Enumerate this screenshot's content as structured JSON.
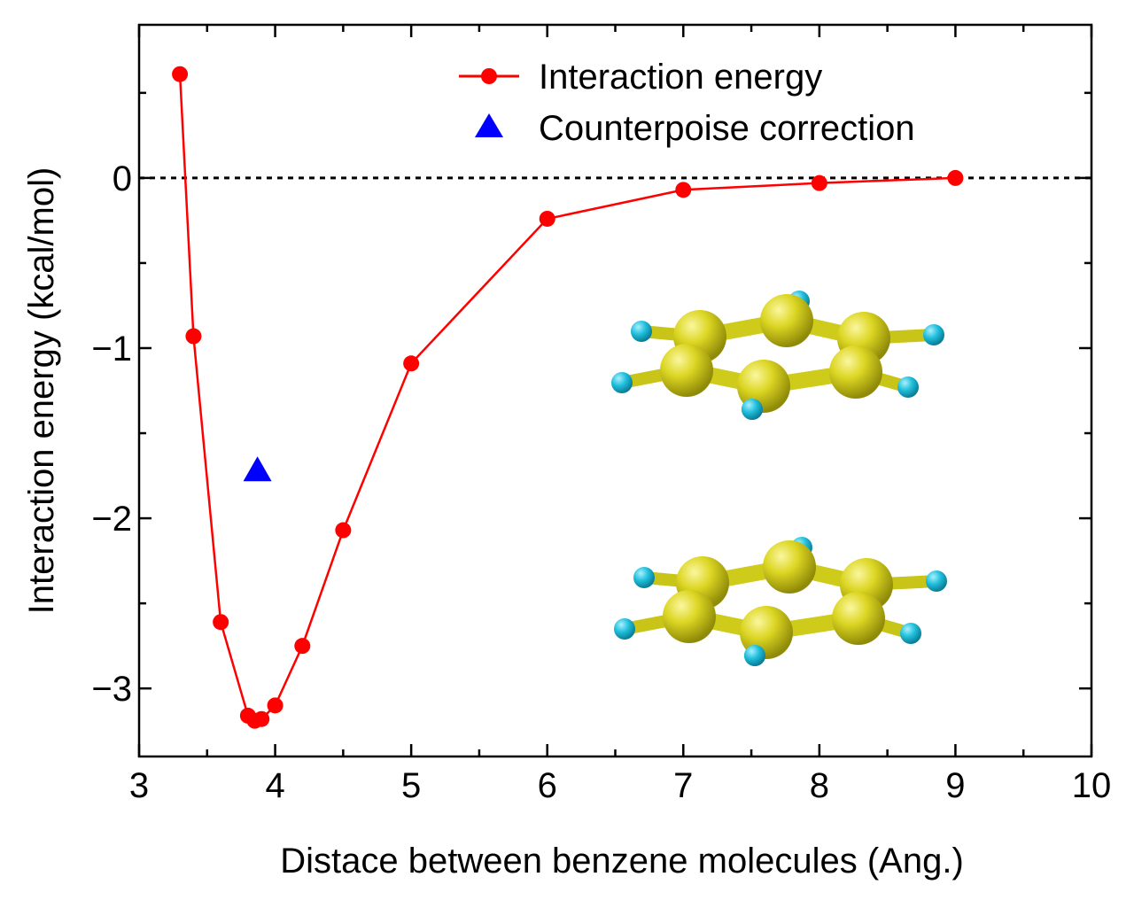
{
  "chart_data": {
    "type": "line",
    "xlabel": "Distace between benzene molecules (Ang.)",
    "ylabel": "Interaction energy (kcal/mol)",
    "xlim": [
      3,
      10
    ],
    "ylim": [
      -3.4,
      0.9
    ],
    "xticks": [
      3,
      4,
      5,
      6,
      7,
      8,
      9,
      10
    ],
    "xtick_labels": [
      "3",
      "4",
      "5",
      "6",
      "7",
      "8",
      "9",
      "10"
    ],
    "yticks": [
      -3,
      -2,
      -1,
      0
    ],
    "ytick_labels": [
      "−3",
      "−2",
      "−1",
      "0"
    ],
    "reference_line": {
      "y": 0,
      "style": "dotted"
    },
    "legend_position": "top-right",
    "series": [
      {
        "name": "Interaction energy",
        "color": "#ff0000",
        "marker": "circle",
        "line": true,
        "points": [
          [
            3.3,
            0.61
          ],
          [
            3.4,
            -0.93
          ],
          [
            3.6,
            -2.61
          ],
          [
            3.8,
            -3.16
          ],
          [
            3.85,
            -3.19
          ],
          [
            3.9,
            -3.18
          ],
          [
            4.0,
            -3.1
          ],
          [
            4.2,
            -2.75
          ],
          [
            4.5,
            -2.07
          ],
          [
            5.0,
            -1.09
          ],
          [
            6.0,
            -0.24
          ],
          [
            7.0,
            -0.07
          ],
          [
            8.0,
            -0.03
          ],
          [
            9.0,
            0.0
          ]
        ]
      },
      {
        "name": "Counterpoise correction",
        "color": "#0000ff",
        "marker": "triangle",
        "line": false,
        "points": [
          [
            3.87,
            -1.72
          ]
        ]
      }
    ],
    "inset": "benzene-dimer-illustration"
  },
  "colors": {
    "carbon": "#d7d31c",
    "hydrogen": "#27c2dc",
    "bond": "#d7d31c"
  }
}
